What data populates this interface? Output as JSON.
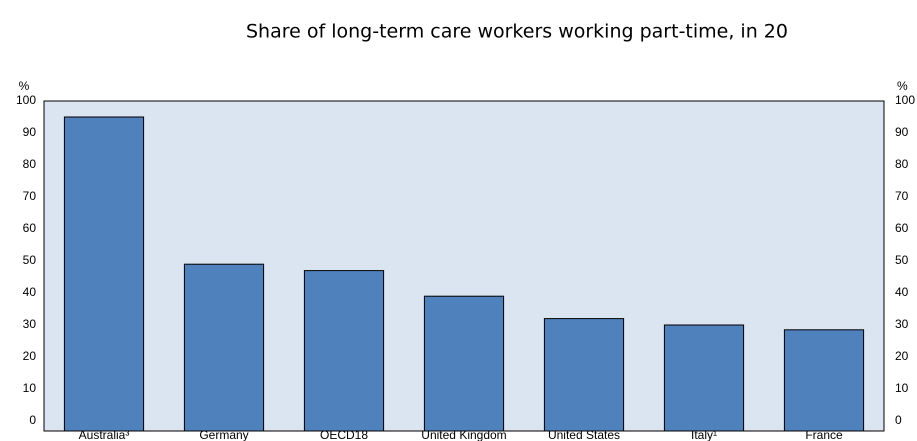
{
  "chart_data": {
    "type": "bar",
    "title": "Share of long-term care workers working part-time, in 20",
    "ylabel": "%",
    "categories": [
      "Australia³",
      "Germany",
      "OECD18",
      "United Kingdom",
      "United States",
      "Italy¹",
      "France"
    ],
    "values": [
      95,
      49,
      47,
      39,
      32,
      30,
      28.5
    ],
    "color": "#4f81bd",
    "ylim": [
      0,
      100
    ],
    "yticks": [
      0,
      10,
      20,
      30,
      40,
      50,
      60,
      70,
      80,
      90,
      100
    ],
    "grid": false
  }
}
